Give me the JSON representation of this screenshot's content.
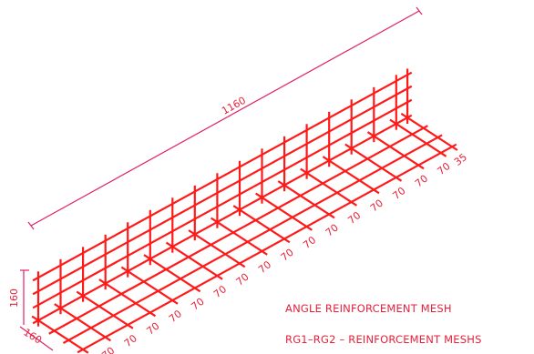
{
  "drawing": {
    "overall_length_label": "1160",
    "height_label": "160",
    "depth_label": "160",
    "spacing_labels": [
      "70",
      "70",
      "70",
      "70",
      "70",
      "70",
      "70",
      "70",
      "70",
      "70",
      "70",
      "70",
      "70",
      "70",
      "70",
      "70",
      "35"
    ],
    "captions": {
      "line1": "ANGLE REINFORCEMENT MESH",
      "line2": "RG1–RG2  –  REINFORCEMENT MESHS"
    },
    "colors": {
      "bars": "#ff1a1a",
      "dimension": "#e0206a",
      "text": "#e8203a",
      "background": "#ffffff"
    }
  }
}
